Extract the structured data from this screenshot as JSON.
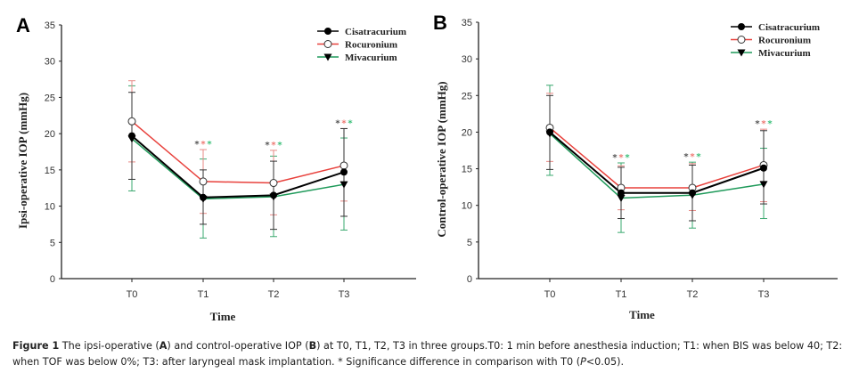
{
  "chart_data": [
    {
      "type": "line",
      "panel_label": "A",
      "title": "",
      "xlabel": "Time",
      "ylabel": "Ipsi-operative IOP (mmHg)",
      "ylim": [
        0,
        35
      ],
      "yticks": [
        0,
        5,
        10,
        15,
        20,
        25,
        30,
        35
      ],
      "categories": [
        "T0",
        "T1",
        "T2",
        "T3"
      ],
      "grid": false,
      "legend_position": "top-right",
      "significance_marks": [
        "T1",
        "T2",
        "T3"
      ],
      "series": [
        {
          "name": "Cisatracurium",
          "color": "#000000",
          "marker": "filled-circle",
          "values": [
            19.7,
            11.2,
            11.5,
            14.7
          ],
          "err_upper": [
            25.7,
            15.0,
            16.2,
            20.7
          ],
          "err_lower": [
            13.7,
            7.5,
            6.8,
            8.6
          ]
        },
        {
          "name": "Rocuronium",
          "color": "#e8413c",
          "marker": "open-circle",
          "values": [
            21.7,
            13.4,
            13.2,
            15.6
          ],
          "err_upper": [
            27.3,
            17.8,
            17.7,
            20.7
          ],
          "err_lower": [
            16.1,
            9.0,
            8.8,
            10.7
          ]
        },
        {
          "name": "Mivacurium",
          "color": "#1f9a5a",
          "marker": "filled-triangle-down",
          "values": [
            19.3,
            11.0,
            11.3,
            13.0
          ],
          "err_upper": [
            26.6,
            16.5,
            16.9,
            19.4
          ],
          "err_lower": [
            12.1,
            5.6,
            5.8,
            6.7
          ]
        }
      ]
    },
    {
      "type": "line",
      "panel_label": "B",
      "title": "",
      "xlabel": "Time",
      "ylabel": "Control-operative IOP (mmHg)",
      "ylim": [
        0,
        35
      ],
      "yticks": [
        0,
        5,
        10,
        15,
        20,
        25,
        30,
        35
      ],
      "categories": [
        "T0",
        "T1",
        "T2",
        "T3"
      ],
      "grid": false,
      "legend_position": "top-right",
      "significance_marks": [
        "T1",
        "T2",
        "T3"
      ],
      "series": [
        {
          "name": "Cisatracurium",
          "color": "#000000",
          "marker": "filled-circle",
          "values": [
            20.0,
            11.7,
            11.7,
            15.1
          ],
          "err_upper": [
            25.0,
            15.2,
            15.5,
            20.2
          ],
          "err_lower": [
            14.9,
            8.2,
            7.9,
            10.2
          ]
        },
        {
          "name": "Rocuronium",
          "color": "#e8413c",
          "marker": "open-circle",
          "values": [
            20.6,
            12.4,
            12.4,
            15.5
          ],
          "err_upper": [
            25.3,
            15.4,
            15.7,
            20.4
          ],
          "err_lower": [
            16.0,
            9.4,
            9.3,
            10.5
          ]
        },
        {
          "name": "Mivacurium",
          "color": "#1f9a5a",
          "marker": "filled-triangle-down",
          "values": [
            19.8,
            11.0,
            11.4,
            12.9
          ],
          "err_upper": [
            26.4,
            15.8,
            15.9,
            17.8
          ],
          "err_lower": [
            14.1,
            6.3,
            6.9,
            8.2
          ]
        }
      ]
    }
  ],
  "significance_symbol": "*",
  "caption": {
    "figure_label": "Figure 1",
    "part1": " The ipsi-operative (",
    "a": "A",
    "part2": ") and control-operative IOP (",
    "b": "B",
    "part3": ") at T0, T1, T2, T3 in three groups.T0: 1 min before anesthesia induction; T1: when BIS was below 40; T2: when TOF was below 0%; T3: after laryngeal mask implantation. * Significance difference in comparison with T0 (",
    "p": "P",
    "part4": "<0.05)."
  }
}
